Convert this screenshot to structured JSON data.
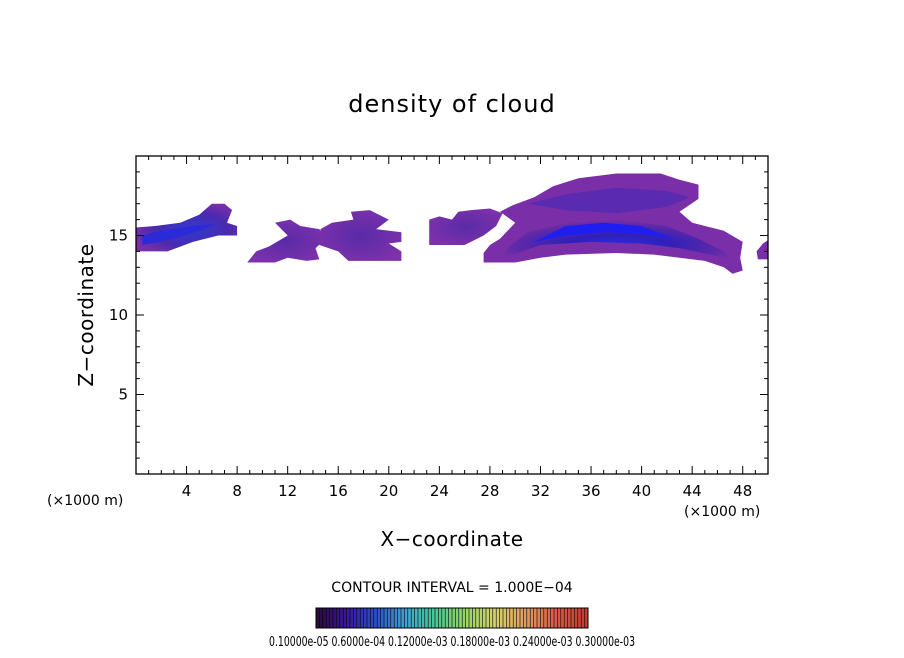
{
  "chart_data": {
    "type": "heatmap",
    "title": "density of cloud",
    "xlabel": "X−coordinate",
    "ylabel": "Z−coordinate",
    "x_unit": "(×1000 m)",
    "xlim": [
      0,
      50
    ],
    "ylim": [
      0,
      20
    ],
    "x_ticks": [
      4,
      8,
      12,
      16,
      20,
      24,
      28,
      32,
      36,
      40,
      44,
      48
    ],
    "y_ticks": [
      5,
      10,
      15
    ],
    "contour_interval_text": "CONTOUR INTERVAL = 1.000E−04",
    "colorbar": {
      "labels_text": "0.10000e-05 0.6000e-04 0.12000e-03 0.18000e-03 0.24000e-03 0.30000e-03",
      "colors": [
        "#2a0d3c",
        "#3a18a0",
        "#2e54c8",
        "#3fa8d0",
        "#4cc890",
        "#9cd860",
        "#d8d070",
        "#e09a60",
        "#d85a48",
        "#c83a30"
      ]
    },
    "cloud_regions": [
      {
        "name": "left-tip",
        "x": [
          0,
          2
        ],
        "z": [
          14.0,
          15.2
        ],
        "max_density": 0.00012
      },
      {
        "name": "left-band",
        "x": [
          0,
          8
        ],
        "z": [
          14.0,
          17.0
        ],
        "max_density": 0.00014
      },
      {
        "name": "mid-band-1",
        "x": [
          9,
          15
        ],
        "z": [
          13.2,
          15.5
        ],
        "max_density": 6e-05
      },
      {
        "name": "mid-band-2",
        "x": [
          14,
          21
        ],
        "z": [
          13.4,
          16.5
        ],
        "max_density": 6e-05
      },
      {
        "name": "mid-band-3",
        "x": [
          23,
          28
        ],
        "z": [
          14.0,
          16.6
        ],
        "max_density": 5e-05
      },
      {
        "name": "main-cloud",
        "x": [
          27.5,
          50
        ],
        "z": [
          12.6,
          18.8
        ],
        "max_density": 0.00022
      },
      {
        "name": "right-edge",
        "x": [
          49,
          50
        ],
        "z": [
          13.5,
          14.7
        ],
        "max_density": 8e-05
      }
    ]
  }
}
